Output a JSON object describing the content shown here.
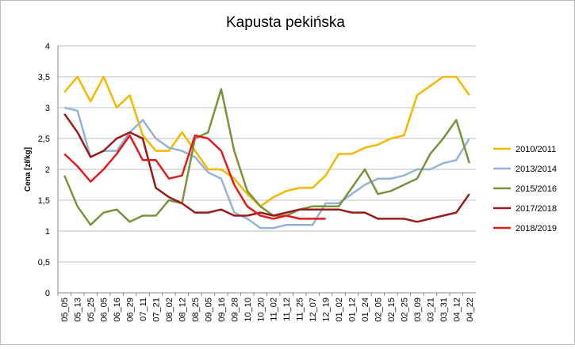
{
  "chart_data": {
    "type": "line",
    "title": "Kapusta pekińska",
    "y_label": "Cena [zł/kg]",
    "categories": [
      "05_05",
      "05_13",
      "05_25",
      "06_05",
      "06_16",
      "06_29",
      "07_11",
      "07_21",
      "08_02",
      "08_12",
      "08_25",
      "09_05",
      "09_16",
      "09_28",
      "10_10",
      "10_20",
      "11_02",
      "11_12",
      "11_25",
      "12_07",
      "12_19",
      "01_02",
      "01_12",
      "01_24",
      "02_05",
      "02_15",
      "02_25",
      "03_09",
      "03_21",
      "03_31",
      "04_12",
      "04_22"
    ],
    "series": [
      {
        "name": "2010/2011",
        "color": "#f5b800",
        "values": [
          3.25,
          3.5,
          3.1,
          3.5,
          3.0,
          3.2,
          2.55,
          2.3,
          2.3,
          2.6,
          2.3,
          2.0,
          2.0,
          1.85,
          1.6,
          1.4,
          1.55,
          1.65,
          1.7,
          1.7,
          1.9,
          2.25,
          2.25,
          2.35,
          2.4,
          2.5,
          2.55,
          3.2,
          3.35,
          3.5,
          3.5,
          3.2
        ]
      },
      {
        "name": "2013/2014",
        "color": "#95b3d7",
        "values": [
          3.0,
          2.95,
          2.2,
          2.3,
          2.3,
          2.6,
          2.8,
          2.5,
          2.35,
          2.3,
          2.2,
          1.95,
          1.85,
          1.3,
          1.2,
          1.05,
          1.05,
          1.1,
          1.1,
          1.1,
          1.45,
          1.45,
          1.6,
          1.75,
          1.85,
          1.85,
          1.9,
          2.0,
          2.0,
          2.1,
          2.15,
          2.5
        ]
      },
      {
        "name": "2015/2016",
        "color": "#77933c",
        "values": [
          1.9,
          1.4,
          1.1,
          1.3,
          1.35,
          1.15,
          1.25,
          1.25,
          1.5,
          1.45,
          2.5,
          2.6,
          3.3,
          2.3,
          1.65,
          1.4,
          1.25,
          1.25,
          1.35,
          1.4,
          1.4,
          1.4,
          1.7,
          2.0,
          1.6,
          1.65,
          1.75,
          1.85,
          2.25,
          2.5,
          2.8,
          2.1
        ]
      },
      {
        "name": "2017/2018",
        "color": "#9b1b1b",
        "values": [
          2.9,
          2.6,
          2.2,
          2.3,
          2.5,
          2.6,
          2.5,
          1.7,
          1.55,
          1.45,
          1.3,
          1.3,
          1.35,
          1.25,
          1.25,
          1.3,
          1.25,
          1.3,
          1.35,
          1.35,
          1.35,
          1.35,
          1.3,
          1.3,
          1.2,
          1.2,
          1.2,
          1.15,
          1.2,
          1.25,
          1.3,
          1.6
        ]
      },
      {
        "name": "2018/2019",
        "color": "#e31a1a",
        "values": [
          2.25,
          2.05,
          1.8,
          2.0,
          2.25,
          2.55,
          2.15,
          2.15,
          1.85,
          1.9,
          2.55,
          2.5,
          2.3,
          1.75,
          1.4,
          1.25,
          1.2,
          1.25,
          1.2,
          1.2,
          1.2,
          null,
          null,
          null,
          null,
          null,
          null,
          null,
          null,
          null,
          null,
          null
        ]
      }
    ],
    "ylim": [
      0,
      4
    ],
    "yticks": [
      0,
      {
        "value": 0.5,
        "label": "0,5"
      },
      1,
      {
        "value": 1.5,
        "label": "1,5"
      },
      2,
      {
        "value": 2.5,
        "label": "2,5"
      },
      3,
      {
        "value": 3.5,
        "label": "3,5"
      },
      4
    ],
    "grid": true
  }
}
